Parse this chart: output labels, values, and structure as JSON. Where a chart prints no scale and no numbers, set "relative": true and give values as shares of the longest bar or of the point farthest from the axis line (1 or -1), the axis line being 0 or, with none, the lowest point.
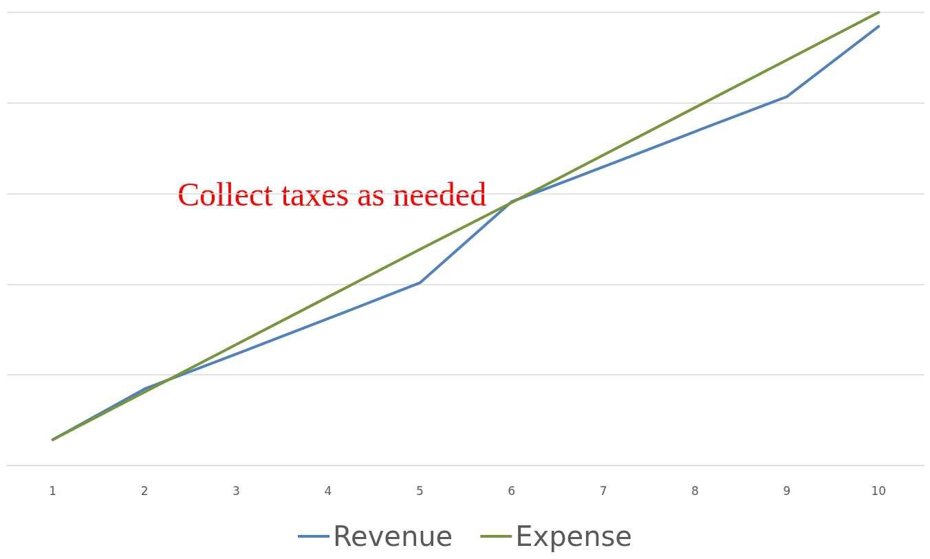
{
  "chart_data": {
    "type": "line",
    "relative": true,
    "categories": [
      "1",
      "2",
      "3",
      "4",
      "5",
      "6",
      "7",
      "8",
      "9",
      "10"
    ],
    "series": [
      {
        "name": "Revenue",
        "color": "#4f81bd",
        "values": [
          0.057,
          0.169,
          0.246,
          0.324,
          0.403,
          0.582,
          0.659,
          0.737,
          0.814,
          0.969
        ]
      },
      {
        "name": "Expense",
        "color": "#77963b",
        "values": [
          0.057,
          0.162,
          0.267,
          0.372,
          0.477,
          0.58,
          0.685,
          0.79,
          0.895,
          1
        ]
      }
    ],
    "annotations": [
      "Collect taxes as needed"
    ],
    "grid": "y",
    "legend": "bottom"
  }
}
